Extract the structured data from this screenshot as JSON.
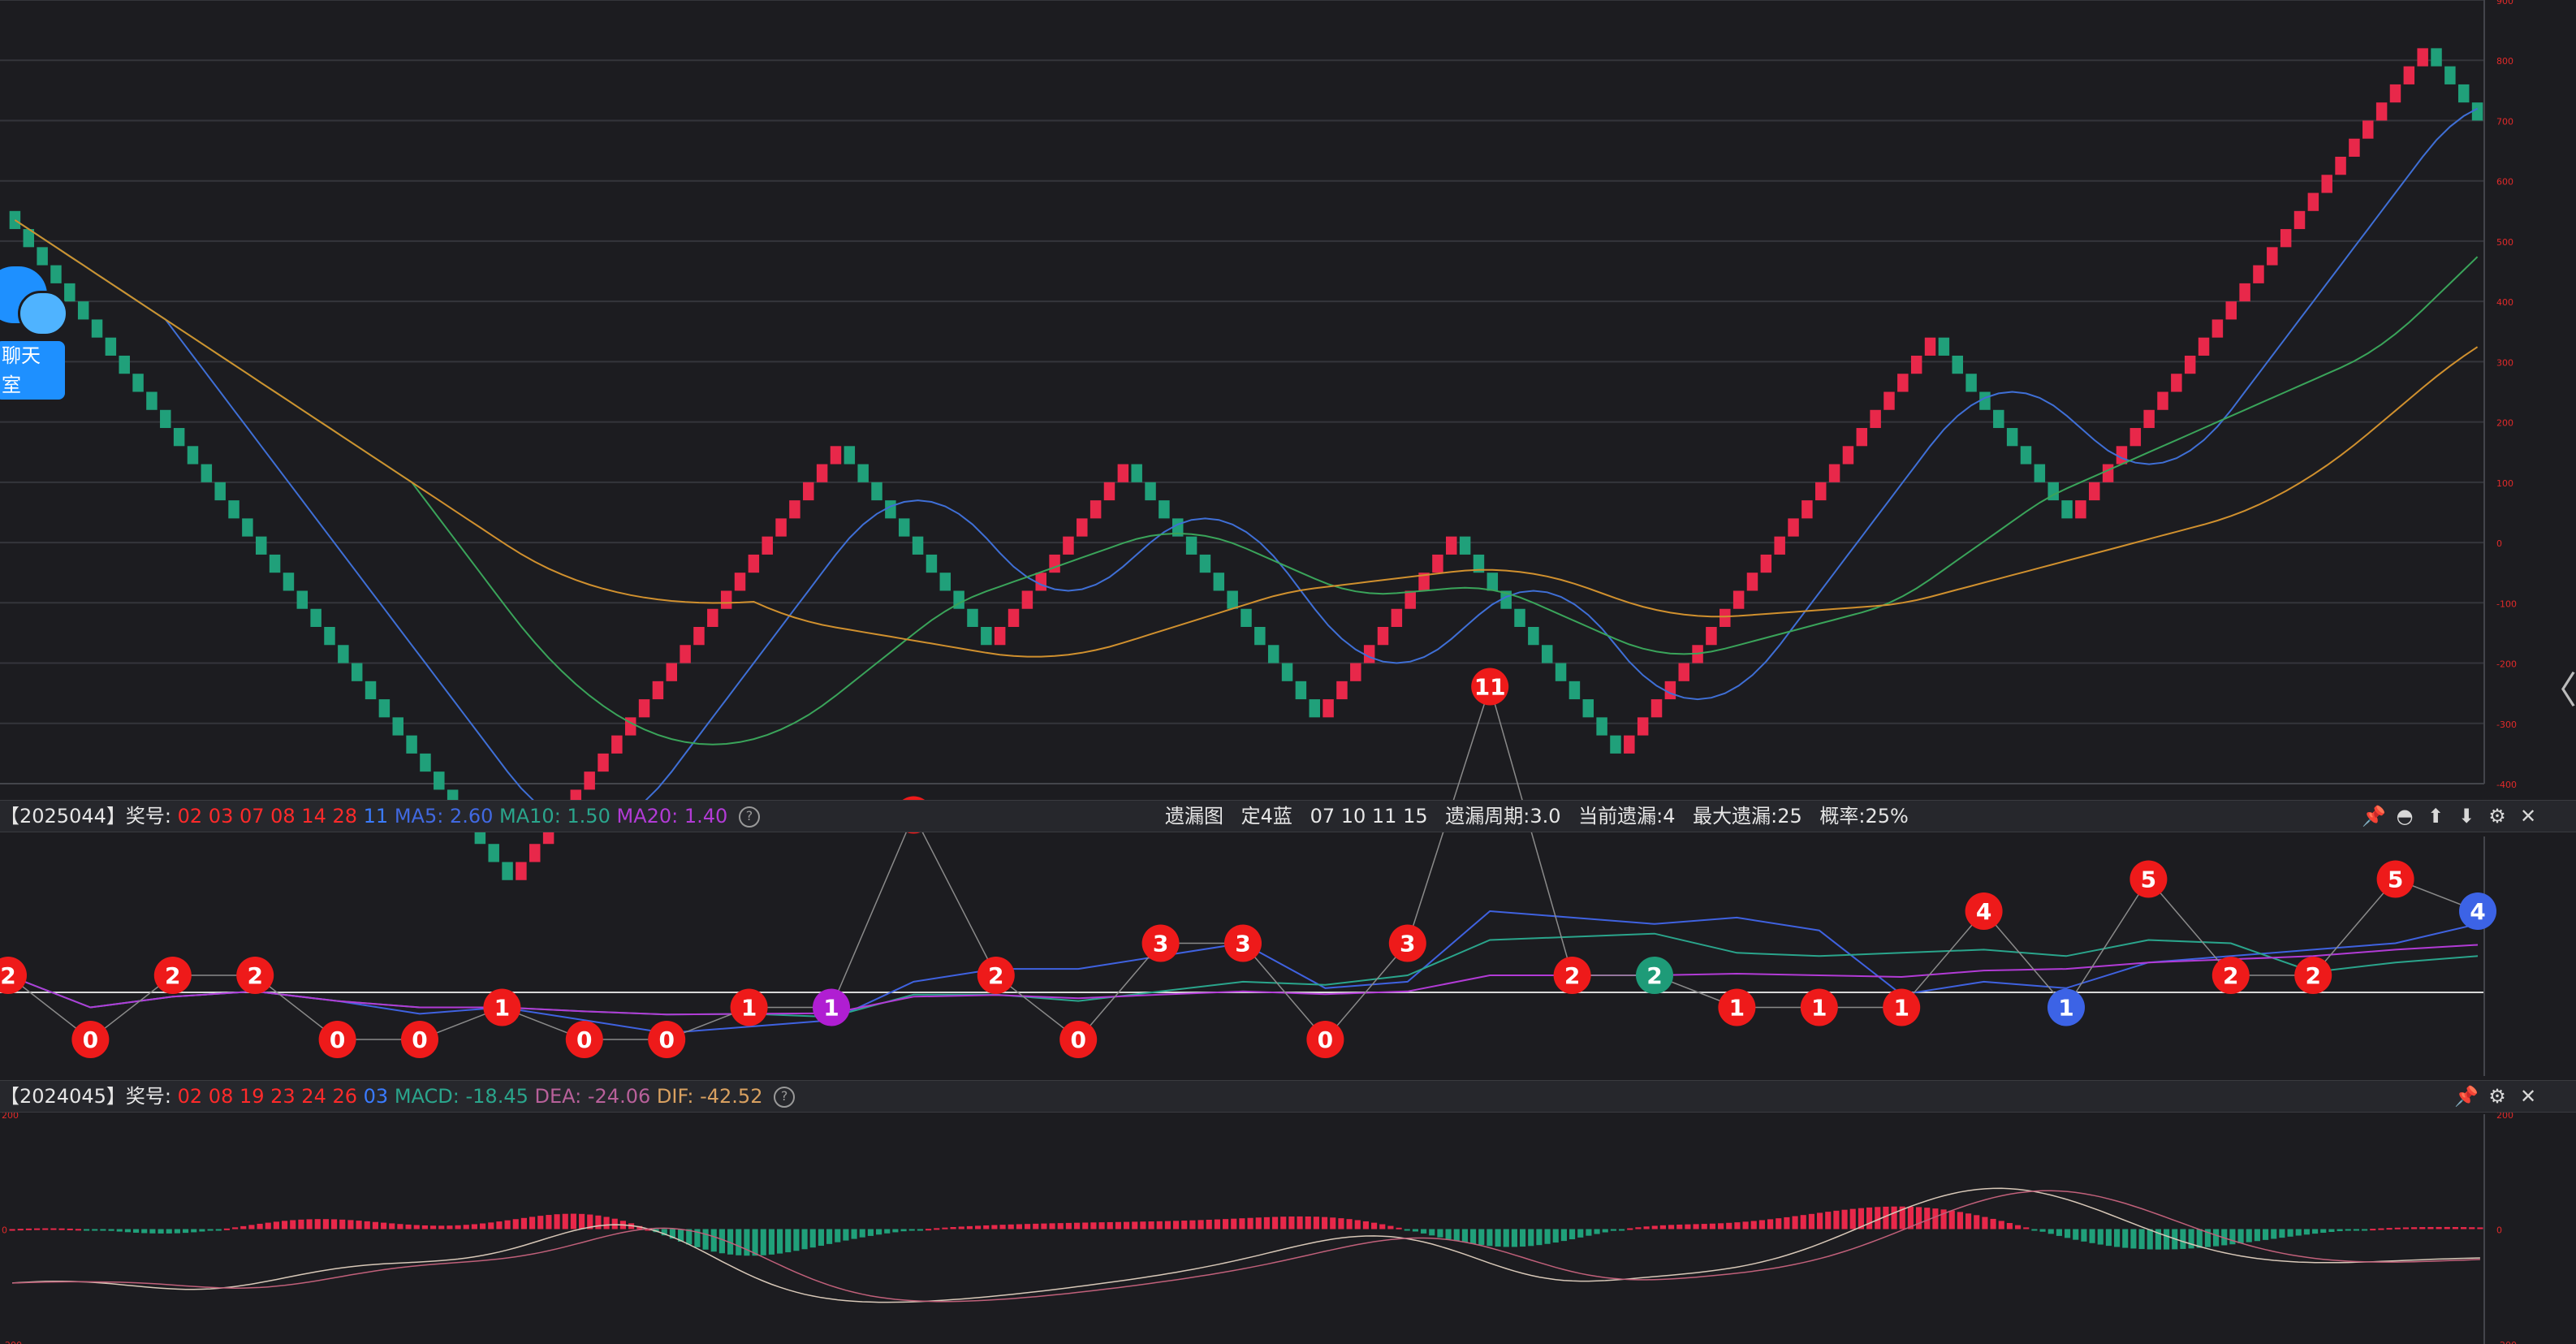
{
  "colors": {
    "up": "#e8284a",
    "down": "#20a07a",
    "ma_blue": "#3f6fd6",
    "ma_green": "#3aa45a",
    "ma_orange": "#d0902e",
    "grid": "#34353b",
    "ball_red": "#ee1a1a",
    "ball_purple": "#b01ed2",
    "ball_teal": "#1e9b78",
    "ball_blue": "#3c63e6"
  },
  "chat": {
    "label": "聊天室"
  },
  "panel1": {
    "period": "【2025044】",
    "prize_label": "奖号:",
    "red_nums": "02 03 07 08 14 28",
    "blue_num": "11",
    "ma5_label": "MA5: 2.60",
    "ma10_label": "MA10: 1.50",
    "ma20_label": "MA20: 1.40",
    "info": [
      "遗漏图",
      "定4蓝",
      "07 10 11 15",
      "遗漏周期:3.0",
      "当前遗漏:4",
      "最大遗漏:25",
      "概率:25%"
    ]
  },
  "panel2": {
    "period": "【2024045】",
    "prize_label": "奖号:",
    "red_nums": "02 08 19 23 24 26",
    "blue_num": "03",
    "macd_label": "MACD: -18.45",
    "dea_label": "DEA: -24.06",
    "dif_label": "DIF: -42.52"
  },
  "help_glyph": "?",
  "collapse_glyph": "〈",
  "tool_icons": {
    "panel1": [
      "pin-icon",
      "collapse-icon",
      "move-up-icon",
      "move-down-icon",
      "settings-icon",
      "close-icon"
    ],
    "panel2": [
      "pin-icon",
      "settings-icon",
      "close-icon"
    ]
  },
  "tool_glyphs": {
    "pin-icon": "📌",
    "collapse-icon": "◓",
    "move-up-icon": "⬆",
    "move-down-icon": "⬇",
    "settings-icon": "⚙",
    "close-icon": "✕"
  },
  "chart_data": [
    {
      "type": "candlestick",
      "series_name": "main",
      "ylim": [
        -400,
        900
      ],
      "yticks": [
        -400,
        -300,
        -200,
        -100,
        0,
        100,
        200,
        300,
        400,
        500,
        600,
        700,
        800,
        900
      ],
      "grid": true,
      "closes": [
        550,
        440,
        360,
        260,
        160,
        60,
        -40,
        -140,
        -240,
        -340,
        -440,
        -540,
        -580,
        -500,
        -420,
        -310,
        -240,
        -200,
        -180,
        -210,
        -140,
        -110,
        -80,
        -40,
        10,
        60,
        90,
        120,
        140,
        170,
        180,
        170,
        120,
        60,
        30,
        10,
        -40,
        -90,
        -140,
        -160,
        -160,
        -170,
        -150,
        -160,
        -150,
        -120,
        -80,
        -40,
        -10,
        10,
        40,
        70,
        110,
        150,
        130,
        80,
        20,
        -30,
        -80,
        -130,
        -170,
        -200,
        -230,
        -260,
        -290,
        -300,
        -270,
        -240,
        -230,
        -210,
        -190,
        -170,
        -140,
        -120,
        -90,
        -60,
        -30,
        0,
        10,
        0,
        -30,
        -70,
        -110,
        -150,
        -190,
        -230,
        -270,
        -290,
        -300,
        -320,
        -330,
        -350,
        -370,
        -350,
        -340,
        -310,
        -290,
        -260,
        -220,
        -170,
        -120,
        -60,
        0,
        60,
        120,
        180,
        230,
        270,
        310,
        350,
        360,
        350,
        330,
        290,
        250,
        200,
        150,
        110,
        80,
        60,
        50,
        40,
        50,
        60,
        80,
        110,
        160,
        220,
        270,
        320,
        370,
        420,
        460,
        490,
        520,
        560,
        600,
        640,
        660,
        680,
        700,
        720,
        750,
        770,
        780,
        790,
        790,
        800,
        800,
        800,
        790,
        780,
        780,
        790,
        800,
        820,
        830,
        840,
        830,
        820,
        810,
        800,
        790,
        780,
        760,
        740,
        720,
        700,
        690
      ],
      "renko_step": 30
    },
    {
      "type": "line",
      "series_name": "omission",
      "values": [
        2,
        0,
        2,
        2,
        0,
        0,
        1,
        0,
        0,
        1,
        1,
        7,
        2,
        0,
        3,
        3,
        0,
        3,
        11,
        2,
        2,
        1,
        1,
        1,
        4,
        1,
        5,
        2,
        2,
        5,
        4
      ],
      "ball_colors": [
        "red",
        "red",
        "red",
        "red",
        "red",
        "red",
        "red",
        "red",
        "red",
        "red",
        "purple",
        "red",
        "red",
        "red",
        "red",
        "red",
        "red",
        "red",
        "red",
        "red",
        "teal",
        "red",
        "red",
        "red",
        "red",
        "blue",
        "red",
        "red",
        "red",
        "red",
        "blue"
      ]
    },
    {
      "type": "bar",
      "series_name": "macd",
      "ylim": [
        -200,
        200
      ],
      "yticks": [
        -200,
        0,
        200
      ]
    }
  ]
}
